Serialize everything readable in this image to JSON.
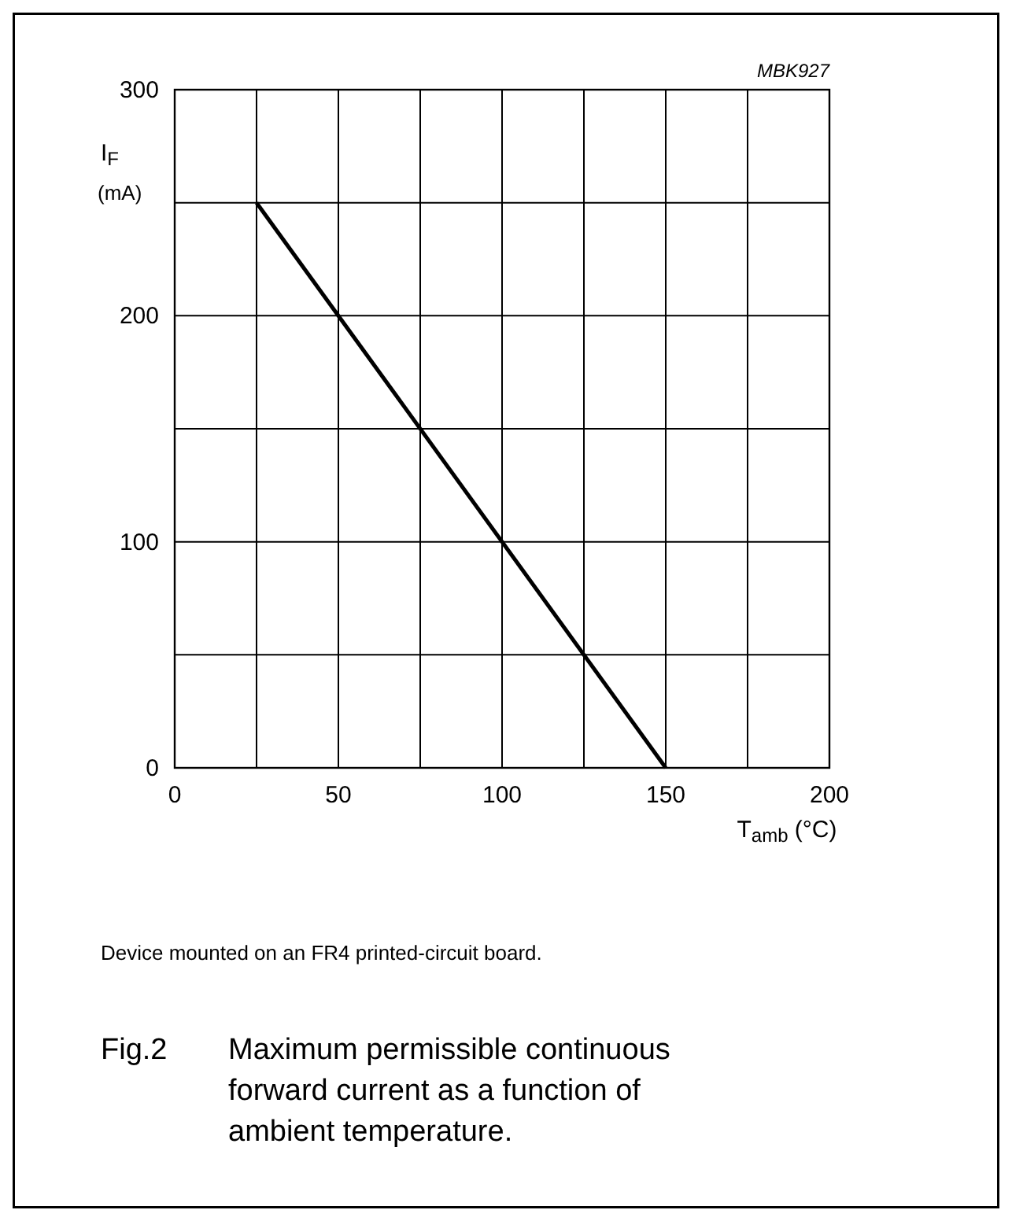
{
  "chart_data": {
    "type": "line",
    "title": "Fig.2 Maximum permissible continuous forward current as a function of ambient temperature.",
    "xlabel": "T$_{amb}$ (°C)",
    "ylabel": "I$_{F}$ (mA)",
    "annotations": [
      "MBK927",
      "Device mounted on an FR4 printed-circuit board."
    ],
    "x": [
      25,
      150
    ],
    "series": [
      {
        "color": "#000000",
        "values": [
          250,
          0
        ]
      }
    ],
    "xlim": [
      0,
      200
    ],
    "ylim": [
      0,
      300
    ],
    "xticks": [
      0,
      {
        "value": 25,
        "label": null
      },
      50,
      {
        "value": 75,
        "label": null
      },
      100,
      {
        "value": 125,
        "label": null
      },
      150,
      {
        "value": 175,
        "label": null
      },
      200
    ],
    "yticks": [
      0,
      {
        "value": 50,
        "label": null
      },
      100,
      {
        "value": 150,
        "label": null
      },
      200,
      {
        "value": 250,
        "label": null
      },
      300
    ],
    "grid": true,
    "marker": "none",
    "line_style": "solid"
  }
}
